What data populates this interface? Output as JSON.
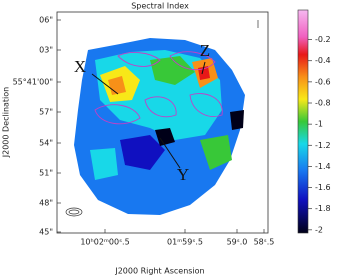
{
  "chart_data": {
    "type": "image",
    "title": "Spectral Index",
    "xlabel": "J2000 Right Ascension",
    "ylabel": "J2000 Declination",
    "xticks": [
      "10ʰ02ᵐ00ˢ.5",
      "01ᵐ59ˢ.5",
      "59ˢ.0",
      "58ˢ.5"
    ],
    "yticks": [
      "06\"",
      "03\"",
      "55°41'00\"",
      "57\"",
      "54\"",
      "51\"",
      "48\"",
      "45\""
    ],
    "colorbar": {
      "clim": [
        -2.03,
        0.08
      ],
      "ticks": [
        -0.2,
        -0.4,
        -0.6,
        -0.8,
        -1,
        -1.2,
        -1.4,
        -1.6,
        -1.8,
        -2
      ]
    },
    "annotations": [
      "X",
      "Y",
      "Z"
    ]
  }
}
